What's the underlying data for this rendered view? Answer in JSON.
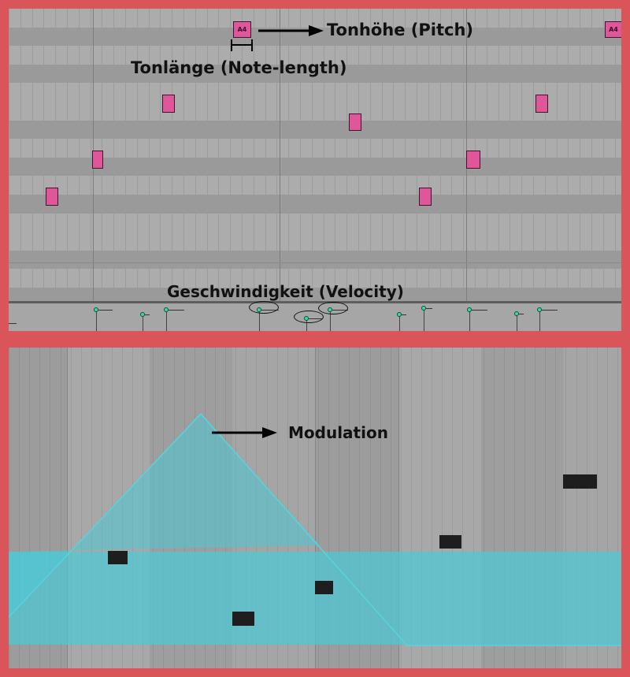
{
  "piano_roll": {
    "note_pitch_label": "A4",
    "note_pitch_label_right": "A4",
    "annotation_pitch": "Tonhöhe (Pitch)",
    "annotation_length": "Tonlänge (Note-length)",
    "annotation_velocity": "Geschwindigkeit (Velocity)",
    "note_color": "#e0569a",
    "velocity_color": "#2fe0a0"
  },
  "automation": {
    "annotation_modulation": "Modulation",
    "curve_color": "#4cc9d6"
  }
}
